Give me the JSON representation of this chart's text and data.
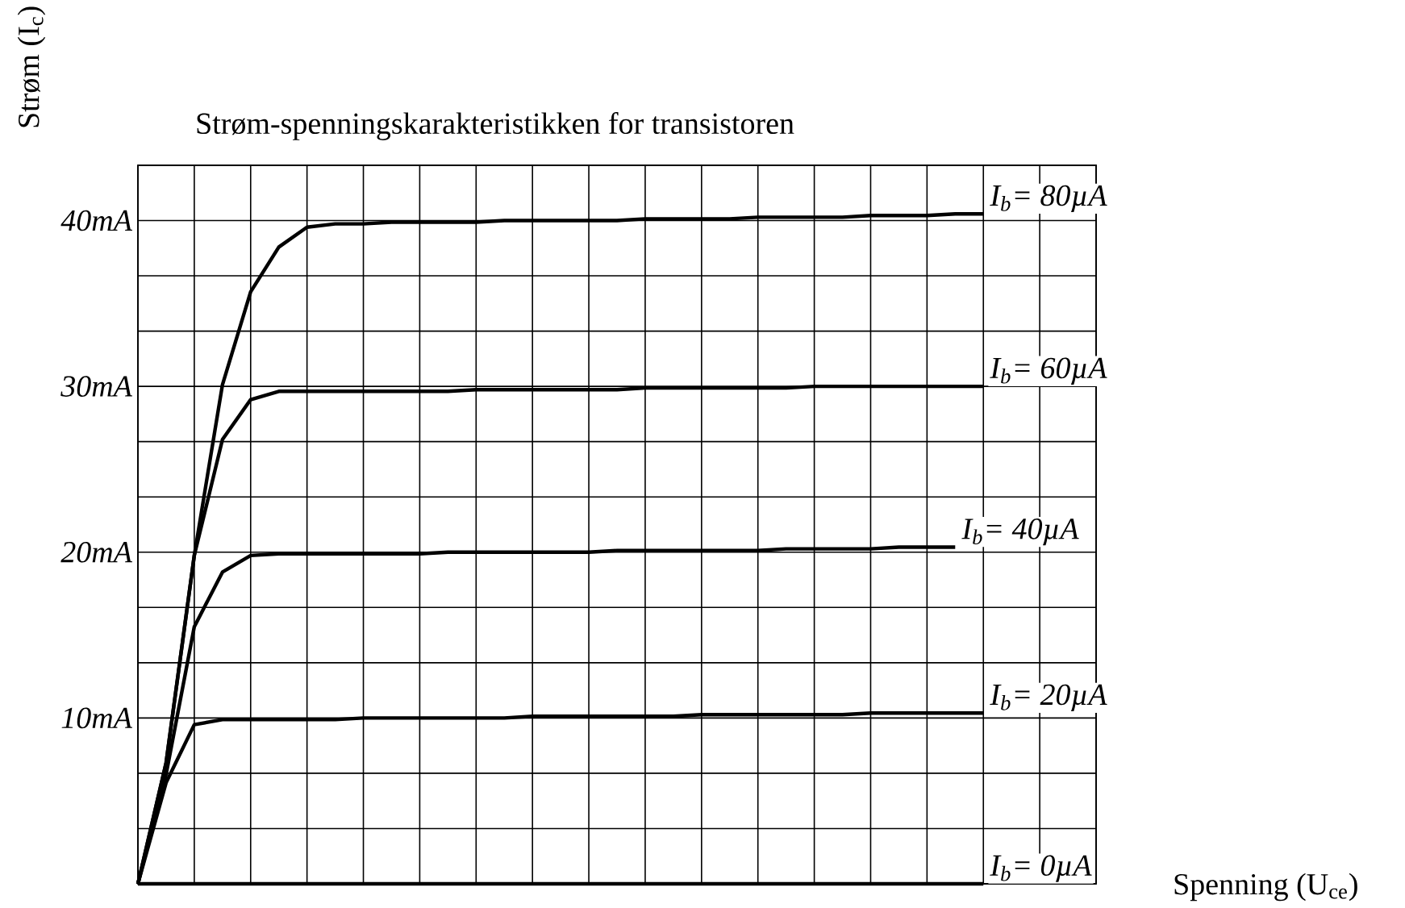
{
  "chart_data": {
    "type": "line",
    "title": "Strøm-spenningskarakteristikken for transistoren",
    "xlabel": "Spenning (U$_{ce}$)",
    "ylabel": "Strøm (I$_{c}$)",
    "categories": [
      null,
      null,
      null,
      null,
      null,
      null,
      null,
      null,
      null,
      null,
      null,
      null,
      null,
      null,
      null,
      null,
      null,
      null,
      null,
      null,
      null,
      null,
      null,
      null,
      null,
      null,
      null,
      null,
      null,
      null,
      null,
      null,
      null,
      null,
      null
    ],
    "ylim": [
      0,
      43.33
    ],
    "yticks": [
      {
        "value": 3.33,
        "label": null
      },
      {
        "value": 6.67,
        "label": null
      },
      {
        "value": 10,
        "label": "10mA"
      },
      {
        "value": 13.33,
        "label": null
      },
      {
        "value": 16.67,
        "label": null
      },
      {
        "value": 20,
        "label": "20mA"
      },
      {
        "value": 23.33,
        "label": null
      },
      {
        "value": 26.67,
        "label": null
      },
      {
        "value": 30,
        "label": "30mA"
      },
      {
        "value": 33.33,
        "label": null
      },
      {
        "value": 36.67,
        "label": null
      },
      {
        "value": 40,
        "label": "40mA"
      }
    ],
    "grid": true,
    "line_style": "solid",
    "series": [
      {
        "name": "I$_{b}$= 80µA",
        "color": "#000000",
        "values": [
          0,
          7.3,
          19.8,
          30.1,
          35.7,
          38.4,
          39.6,
          39.8,
          39.8,
          39.9,
          39.9,
          39.9,
          39.9,
          40.0,
          40.0,
          40.0,
          40.0,
          40.0,
          40.1,
          40.1,
          40.1,
          40.1,
          40.2,
          40.2,
          40.2,
          40.2,
          40.3,
          40.3,
          40.3,
          40.4,
          40.4,
          null,
          null,
          null,
          null
        ]
      },
      {
        "name": "I$_{b}$= 60µA",
        "color": "#000000",
        "values": [
          0,
          7.3,
          19.8,
          26.8,
          29.2,
          29.7,
          29.7,
          29.7,
          29.7,
          29.7,
          29.7,
          29.7,
          29.8,
          29.8,
          29.8,
          29.8,
          29.8,
          29.8,
          29.9,
          29.9,
          29.9,
          29.9,
          29.9,
          29.9,
          30.0,
          30.0,
          30.0,
          30.0,
          30.0,
          30.0,
          30.0,
          null,
          null,
          null,
          null
        ]
      },
      {
        "name": "I$_{b}$= 40µA",
        "color": "#000000",
        "values": [
          0,
          6.6,
          15.5,
          18.8,
          19.8,
          19.9,
          19.9,
          19.9,
          19.9,
          19.9,
          19.9,
          20.0,
          20.0,
          20.0,
          20.0,
          20.0,
          20.0,
          20.1,
          20.1,
          20.1,
          20.1,
          20.1,
          20.1,
          20.2,
          20.2,
          20.2,
          20.2,
          20.3,
          20.3,
          20.3,
          null,
          null,
          null,
          null,
          null
        ]
      },
      {
        "name": "I$_{b}$= 20µA",
        "color": "#000000",
        "values": [
          0,
          6.1,
          9.6,
          9.9,
          9.9,
          9.9,
          9.9,
          9.9,
          10.0,
          10.0,
          10.0,
          10.0,
          10.0,
          10.0,
          10.1,
          10.1,
          10.1,
          10.1,
          10.1,
          10.1,
          10.2,
          10.2,
          10.2,
          10.2,
          10.2,
          10.2,
          10.3,
          10.3,
          10.3,
          10.3,
          10.3,
          null,
          null,
          null,
          null
        ]
      },
      {
        "name": "I$_{b}$= 0µA",
        "color": "#000000",
        "values": [
          0,
          0,
          0,
          0,
          0,
          0,
          0,
          0,
          0,
          0,
          0,
          0,
          0,
          0,
          0,
          0,
          0,
          0,
          0,
          0,
          0,
          0,
          0,
          0,
          0,
          0,
          0,
          0,
          0,
          0,
          0,
          null,
          null,
          null,
          null
        ]
      }
    ]
  }
}
